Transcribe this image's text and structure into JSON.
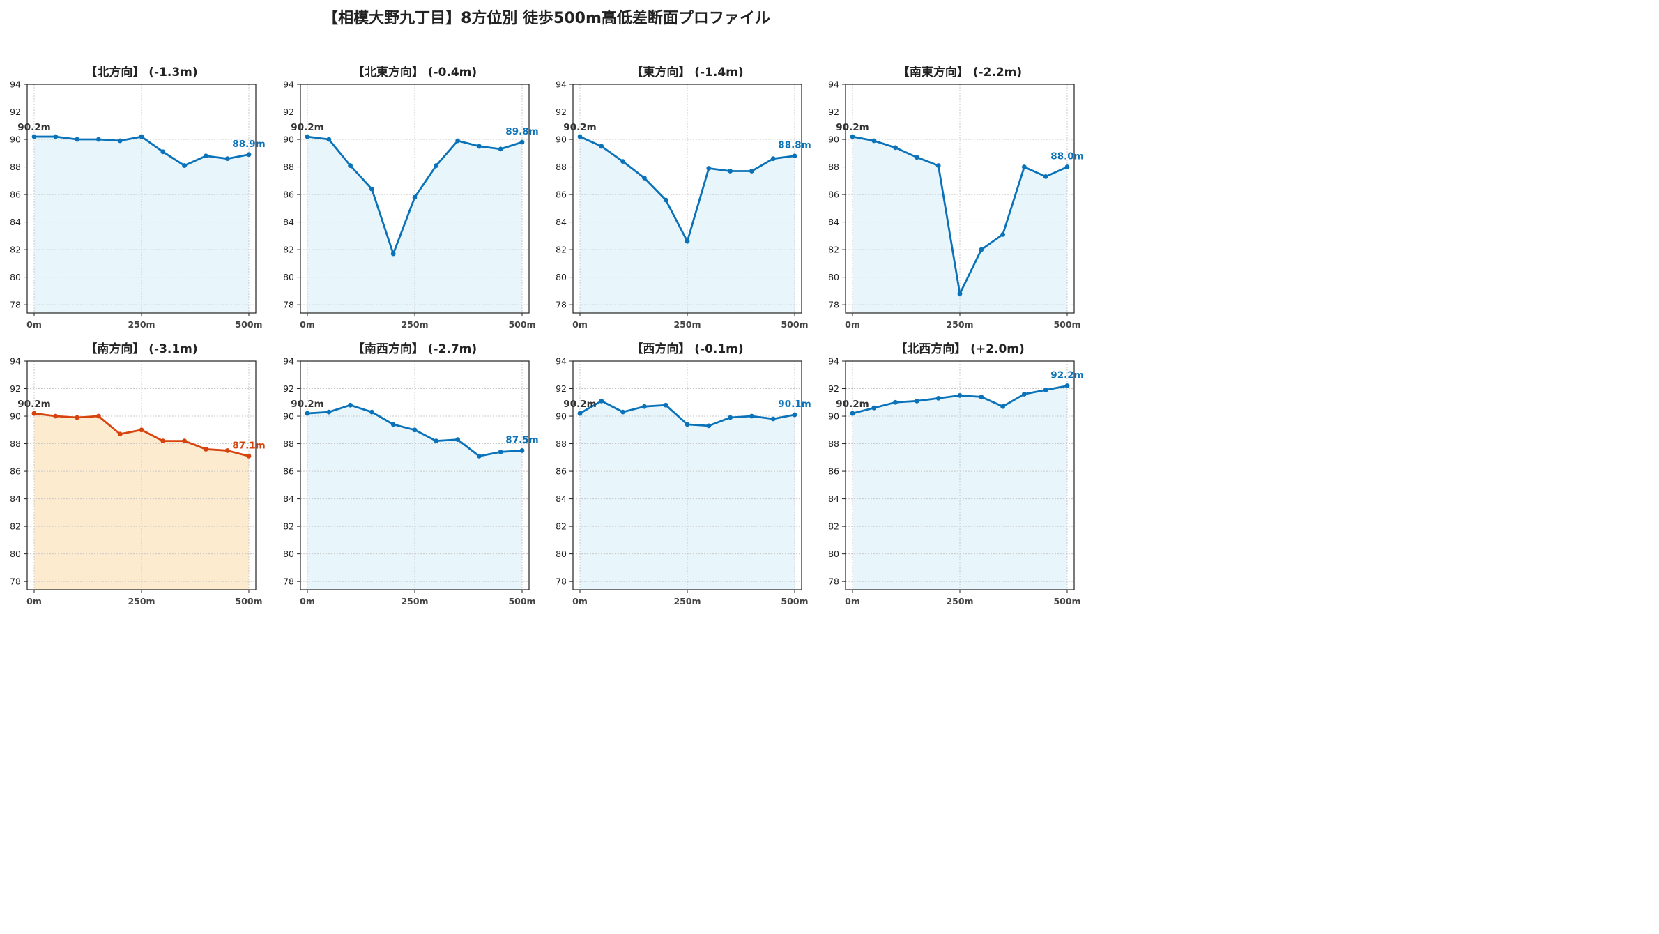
{
  "title": "【相模大野九丁目】8方位別 徒歩500m高低差断面プロファイル",
  "colors": {
    "line_default": "#0a72b8",
    "fill_default": "#e8f6fc",
    "line_highlight": "#d8420c",
    "fill_highlight": "#fdebd0",
    "grid": "#c8c8c8"
  },
  "chart_data": [
    {
      "type": "line",
      "title": "【北方向】 (-1.3m)",
      "x": [
        0,
        50,
        100,
        150,
        200,
        250,
        300,
        350,
        400,
        450,
        500
      ],
      "y": [
        90.2,
        90.2,
        90.0,
        90.0,
        89.9,
        90.2,
        89.1,
        88.1,
        88.8,
        88.6,
        88.9
      ],
      "start_label": "90.2m",
      "end_label": "88.9m",
      "highlight": false,
      "xticks": [
        "0m",
        "250m",
        "500m"
      ],
      "yticks": [
        78,
        80,
        82,
        84,
        86,
        88,
        90,
        92,
        94
      ],
      "xlim": [
        0,
        500
      ],
      "ylim": [
        77.4,
        94
      ],
      "grid": true
    },
    {
      "type": "line",
      "title": "【北東方向】 (-0.4m)",
      "x": [
        0,
        50,
        100,
        150,
        200,
        250,
        300,
        350,
        400,
        450,
        500
      ],
      "y": [
        90.2,
        90.0,
        88.1,
        86.4,
        81.7,
        85.8,
        88.1,
        89.9,
        89.5,
        89.3,
        89.8
      ],
      "start_label": "90.2m",
      "end_label": "89.8m",
      "highlight": false,
      "xticks": [
        "0m",
        "250m",
        "500m"
      ],
      "yticks": [
        78,
        80,
        82,
        84,
        86,
        88,
        90,
        92,
        94
      ],
      "xlim": [
        0,
        500
      ],
      "ylim": [
        77.4,
        94
      ],
      "grid": true
    },
    {
      "type": "line",
      "title": "【東方向】 (-1.4m)",
      "x": [
        0,
        50,
        100,
        150,
        200,
        250,
        300,
        350,
        400,
        450,
        500
      ],
      "y": [
        90.2,
        89.5,
        88.4,
        87.2,
        85.6,
        82.6,
        87.9,
        87.7,
        87.7,
        88.6,
        88.8
      ],
      "start_label": "90.2m",
      "end_label": "88.8m",
      "highlight": false,
      "xticks": [
        "0m",
        "250m",
        "500m"
      ],
      "yticks": [
        78,
        80,
        82,
        84,
        86,
        88,
        90,
        92,
        94
      ],
      "xlim": [
        0,
        500
      ],
      "ylim": [
        77.4,
        94
      ],
      "grid": true
    },
    {
      "type": "line",
      "title": "【南東方向】 (-2.2m)",
      "x": [
        0,
        50,
        100,
        150,
        200,
        250,
        300,
        350,
        400,
        450,
        500
      ],
      "y": [
        90.2,
        89.9,
        89.4,
        88.7,
        88.1,
        78.8,
        82.0,
        83.1,
        88.0,
        87.3,
        88.0
      ],
      "start_label": "90.2m",
      "end_label": "88.0m",
      "highlight": false,
      "xticks": [
        "0m",
        "250m",
        "500m"
      ],
      "yticks": [
        78,
        80,
        82,
        84,
        86,
        88,
        90,
        92,
        94
      ],
      "xlim": [
        0,
        500
      ],
      "ylim": [
        77.4,
        94
      ],
      "grid": true
    },
    {
      "type": "line",
      "title": "【南方向】 (-3.1m)",
      "x": [
        0,
        50,
        100,
        150,
        200,
        250,
        300,
        350,
        400,
        450,
        500
      ],
      "y": [
        90.2,
        90.0,
        89.9,
        90.0,
        88.7,
        89.0,
        88.2,
        88.2,
        87.6,
        87.5,
        87.1
      ],
      "start_label": "90.2m",
      "end_label": "87.1m",
      "highlight": true,
      "xticks": [
        "0m",
        "250m",
        "500m"
      ],
      "yticks": [
        78,
        80,
        82,
        84,
        86,
        88,
        90,
        92,
        94
      ],
      "xlim": [
        0,
        500
      ],
      "ylim": [
        77.4,
        94
      ],
      "grid": true
    },
    {
      "type": "line",
      "title": "【南西方向】 (-2.7m)",
      "x": [
        0,
        50,
        100,
        150,
        200,
        250,
        300,
        350,
        400,
        450,
        500
      ],
      "y": [
        90.2,
        90.3,
        90.8,
        90.3,
        89.4,
        89.0,
        88.2,
        88.3,
        87.1,
        87.4,
        87.5
      ],
      "start_label": "90.2m",
      "end_label": "87.5m",
      "highlight": false,
      "xticks": [
        "0m",
        "250m",
        "500m"
      ],
      "yticks": [
        78,
        80,
        82,
        84,
        86,
        88,
        90,
        92,
        94
      ],
      "xlim": [
        0,
        500
      ],
      "ylim": [
        77.4,
        94
      ],
      "grid": true
    },
    {
      "type": "line",
      "title": "【西方向】 (-0.1m)",
      "x": [
        0,
        50,
        100,
        150,
        200,
        250,
        300,
        350,
        400,
        450,
        500
      ],
      "y": [
        90.2,
        91.1,
        90.3,
        90.7,
        90.8,
        89.4,
        89.3,
        89.9,
        90.0,
        89.8,
        90.1
      ],
      "start_label": "90.2m",
      "end_label": "90.1m",
      "highlight": false,
      "xticks": [
        "0m",
        "250m",
        "500m"
      ],
      "yticks": [
        78,
        80,
        82,
        84,
        86,
        88,
        90,
        92,
        94
      ],
      "xlim": [
        0,
        500
      ],
      "ylim": [
        77.4,
        94
      ],
      "grid": true
    },
    {
      "type": "line",
      "title": "【北西方向】 (+2.0m)",
      "x": [
        0,
        50,
        100,
        150,
        200,
        250,
        300,
        350,
        400,
        450,
        500
      ],
      "y": [
        90.2,
        90.6,
        91.0,
        91.1,
        91.3,
        91.5,
        91.4,
        90.7,
        91.6,
        91.9,
        92.2
      ],
      "start_label": "90.2m",
      "end_label": "92.2m",
      "highlight": false,
      "xticks": [
        "0m",
        "250m",
        "500m"
      ],
      "yticks": [
        78,
        80,
        82,
        84,
        86,
        88,
        90,
        92,
        94
      ],
      "xlim": [
        0,
        500
      ],
      "ylim": [
        77.4,
        94
      ],
      "grid": true
    }
  ]
}
